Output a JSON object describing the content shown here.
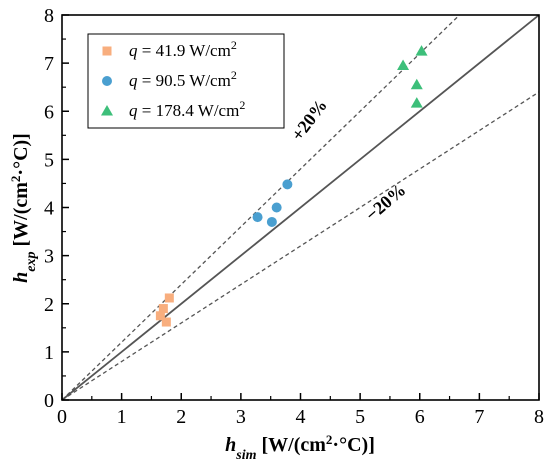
{
  "chart_data": {
    "type": "scatter",
    "xlim": [
      0,
      8
    ],
    "ylim": [
      0,
      8
    ],
    "x_ticks": [
      0,
      1,
      2,
      3,
      4,
      5,
      6,
      7,
      8
    ],
    "y_ticks": [
      0,
      1,
      2,
      3,
      4,
      5,
      6,
      7,
      8
    ],
    "x_tick_labels": [
      "0",
      "1",
      "2",
      "3",
      "4",
      "5",
      "6",
      "7",
      "8"
    ],
    "y_tick_labels": [
      "0",
      "1",
      "2",
      "3",
      "4",
      "5",
      "6",
      "7",
      "8"
    ],
    "xlabel": {
      "main": "h",
      "sub": "sim",
      "unit_pre": " [W/(cm",
      "sup": "2",
      "unit_post": "·°C)]"
    },
    "ylabel": {
      "main": "h",
      "sub": "exp",
      "unit_pre": " [W/(cm",
      "sup": "2",
      "unit_post": "·°C)]"
    },
    "grid": false,
    "legend_position": "top-left",
    "reference_lines": [
      {
        "slope": 1.0,
        "style": "solid",
        "label": ""
      },
      {
        "slope": 1.2,
        "style": "dashed",
        "label": "+20%"
      },
      {
        "slope": 0.8,
        "style": "dashed",
        "label": "−20%"
      }
    ],
    "series": [
      {
        "name": {
          "var": "q",
          "text": " = 41.9 W/cm",
          "sup": "2"
        },
        "marker": "square",
        "color": "#f8ae7e",
        "points": [
          [
            1.65,
            1.75
          ],
          [
            1.7,
            1.9
          ],
          [
            1.8,
            2.12
          ],
          [
            1.75,
            1.62
          ]
        ]
      },
      {
        "name": {
          "var": "q",
          "text": " = 90.5 W/cm",
          "sup": "2"
        },
        "marker": "circle",
        "color": "#4a9fd0",
        "points": [
          [
            3.28,
            3.8
          ],
          [
            3.52,
            3.7
          ],
          [
            3.6,
            4.0
          ],
          [
            3.78,
            4.48
          ]
        ]
      },
      {
        "name": {
          "var": "q",
          "text": " = 178.4 W/cm",
          "sup": "2"
        },
        "marker": "triangle",
        "color": "#3dbf7a",
        "points": [
          [
            5.72,
            6.95
          ],
          [
            6.03,
            7.25
          ],
          [
            5.95,
            6.55
          ],
          [
            5.95,
            6.17
          ]
        ]
      }
    ]
  }
}
